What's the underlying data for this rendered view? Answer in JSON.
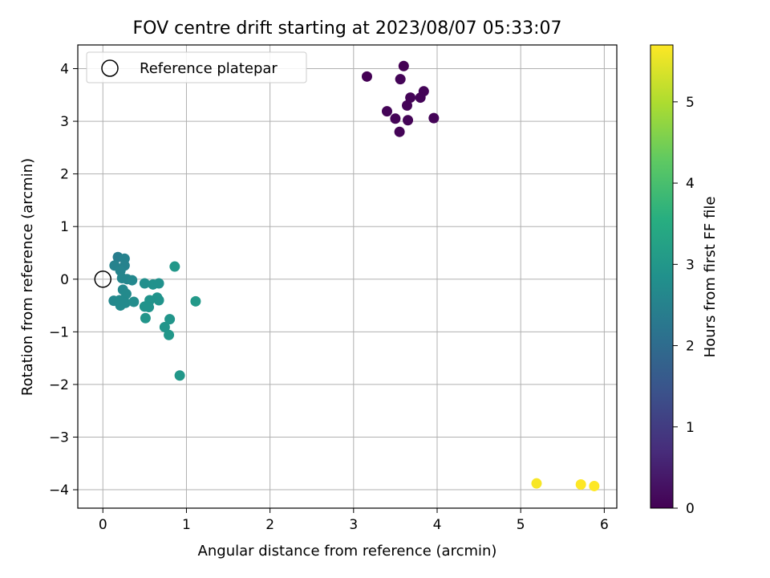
{
  "chart_data": {
    "type": "scatter",
    "title": "FOV centre drift starting at 2023/08/07 05:33:07",
    "xlabel": "Angular distance from reference (arcmin)",
    "ylabel": "Rotation from reference (arcmin)",
    "xlim": [
      -0.3,
      6.15
    ],
    "ylim": [
      -4.35,
      4.45
    ],
    "xticks": [
      0,
      1,
      2,
      3,
      4,
      5,
      6
    ],
    "yticks": [
      -4,
      -3,
      -2,
      -1,
      0,
      1,
      2,
      3,
      4
    ],
    "grid": true,
    "legend": {
      "placement": "top-left",
      "entries": [
        "Reference platepar"
      ]
    },
    "reference_point": {
      "label": "Reference platepar",
      "x": 0,
      "y": 0
    },
    "colorbar": {
      "label": "Hours from first FF file",
      "colormap": "viridis",
      "range": [
        0,
        5.7
      ],
      "ticks": [
        0,
        1,
        2,
        3,
        4,
        5
      ]
    },
    "points": [
      {
        "x": 3.16,
        "y": 3.85,
        "hours": 0.0
      },
      {
        "x": 3.6,
        "y": 4.05,
        "hours": 0.0
      },
      {
        "x": 3.56,
        "y": 3.8,
        "hours": 0.05
      },
      {
        "x": 3.84,
        "y": 3.57,
        "hours": 0.05
      },
      {
        "x": 3.68,
        "y": 3.45,
        "hours": 0.05
      },
      {
        "x": 3.8,
        "y": 3.45,
        "hours": 0.05
      },
      {
        "x": 3.64,
        "y": 3.3,
        "hours": 0.05
      },
      {
        "x": 3.4,
        "y": 3.19,
        "hours": 0.05
      },
      {
        "x": 3.5,
        "y": 3.05,
        "hours": 0.05
      },
      {
        "x": 3.65,
        "y": 3.02,
        "hours": 0.05
      },
      {
        "x": 3.96,
        "y": 3.06,
        "hours": 0.05
      },
      {
        "x": 3.55,
        "y": 2.8,
        "hours": 0.05
      },
      {
        "x": 0.18,
        "y": 0.42,
        "hours": 2.4
      },
      {
        "x": 0.26,
        "y": 0.39,
        "hours": 2.5
      },
      {
        "x": 0.14,
        "y": 0.26,
        "hours": 2.5
      },
      {
        "x": 0.26,
        "y": 0.26,
        "hours": 2.5
      },
      {
        "x": 0.21,
        "y": 0.16,
        "hours": 2.55
      },
      {
        "x": 0.23,
        "y": 0.02,
        "hours": 2.6
      },
      {
        "x": 0.29,
        "y": 0.0,
        "hours": 2.6
      },
      {
        "x": 0.35,
        "y": -0.02,
        "hours": 2.65
      },
      {
        "x": 0.24,
        "y": -0.2,
        "hours": 2.65
      },
      {
        "x": 0.28,
        "y": -0.28,
        "hours": 2.7
      },
      {
        "x": 0.13,
        "y": -0.41,
        "hours": 2.65
      },
      {
        "x": 0.2,
        "y": -0.4,
        "hours": 2.7
      },
      {
        "x": 0.27,
        "y": -0.45,
        "hours": 2.7
      },
      {
        "x": 0.21,
        "y": -0.5,
        "hours": 2.7
      },
      {
        "x": 0.37,
        "y": -0.43,
        "hours": 2.75
      },
      {
        "x": 0.5,
        "y": -0.08,
        "hours": 2.8
      },
      {
        "x": 0.6,
        "y": -0.1,
        "hours": 2.85
      },
      {
        "x": 0.67,
        "y": -0.08,
        "hours": 2.85
      },
      {
        "x": 0.65,
        "y": -0.35,
        "hours": 2.9
      },
      {
        "x": 0.67,
        "y": -0.4,
        "hours": 2.9
      },
      {
        "x": 0.56,
        "y": -0.4,
        "hours": 2.9
      },
      {
        "x": 0.5,
        "y": -0.52,
        "hours": 2.9
      },
      {
        "x": 0.55,
        "y": -0.53,
        "hours": 2.9
      },
      {
        "x": 0.51,
        "y": -0.74,
        "hours": 2.95
      },
      {
        "x": 0.8,
        "y": -0.76,
        "hours": 2.95
      },
      {
        "x": 0.74,
        "y": -0.91,
        "hours": 2.95
      },
      {
        "x": 0.79,
        "y": -1.06,
        "hours": 3.0
      },
      {
        "x": 0.86,
        "y": 0.24,
        "hours": 3.0
      },
      {
        "x": 1.11,
        "y": -0.42,
        "hours": 3.05
      },
      {
        "x": 0.92,
        "y": -1.83,
        "hours": 3.0
      },
      {
        "x": 5.19,
        "y": -3.88,
        "hours": 5.65
      },
      {
        "x": 5.72,
        "y": -3.9,
        "hours": 5.7
      },
      {
        "x": 5.88,
        "y": -3.93,
        "hours": 5.7
      }
    ]
  }
}
